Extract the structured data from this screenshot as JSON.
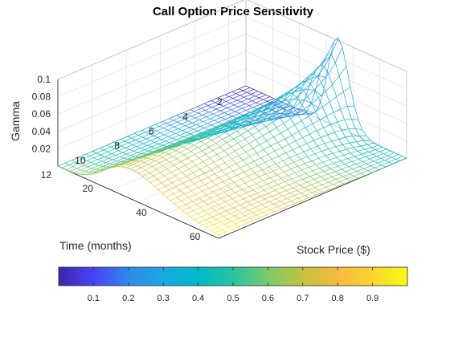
{
  "chart_data": {
    "type": "surface",
    "title": "Call Option Price Sensitivity",
    "xlabel": "Stock Price ($)",
    "ylabel": "Time (months)",
    "zlabel": "Gamma",
    "x_ticks": [
      "20",
      "40",
      "60"
    ],
    "y_ticks": [
      "2",
      "4",
      "6",
      "8",
      "10",
      "12"
    ],
    "z_ticks": [
      "0.02",
      "0.04",
      "0.06",
      "0.08",
      "0.1"
    ],
    "xlim": [
      10,
      70
    ],
    "ylim": [
      1,
      12
    ],
    "zlim": [
      0,
      0.1
    ],
    "colormap": "parula",
    "colorbar": {
      "ticks": [
        "0.1",
        "0.2",
        "0.3",
        "0.4",
        "0.5",
        "0.6",
        "0.7",
        "0.8",
        "0.9"
      ],
      "range": [
        0,
        1
      ],
      "colors": [
        "#3e26a8",
        "#4743f8",
        "#2f89ea",
        "#17a9e0",
        "#00b9c8",
        "#27c4a0",
        "#7bca6c",
        "#c4c240",
        "#f6ba3f",
        "#f9d52e",
        "#f9fb15"
      ]
    },
    "surface_samples": [
      {
        "stock_price": 45,
        "time_months": 1,
        "gamma": 0.047
      },
      {
        "stock_price": 45,
        "time_months": 6,
        "gamma": 0.017
      },
      {
        "stock_price": 45,
        "time_months": 12,
        "gamma": 0.012
      },
      {
        "stock_price": 20,
        "time_months": 12,
        "gamma": 0.0
      },
      {
        "stock_price": 70,
        "time_months": 12,
        "gamma": 0.0
      }
    ],
    "grid": true
  }
}
